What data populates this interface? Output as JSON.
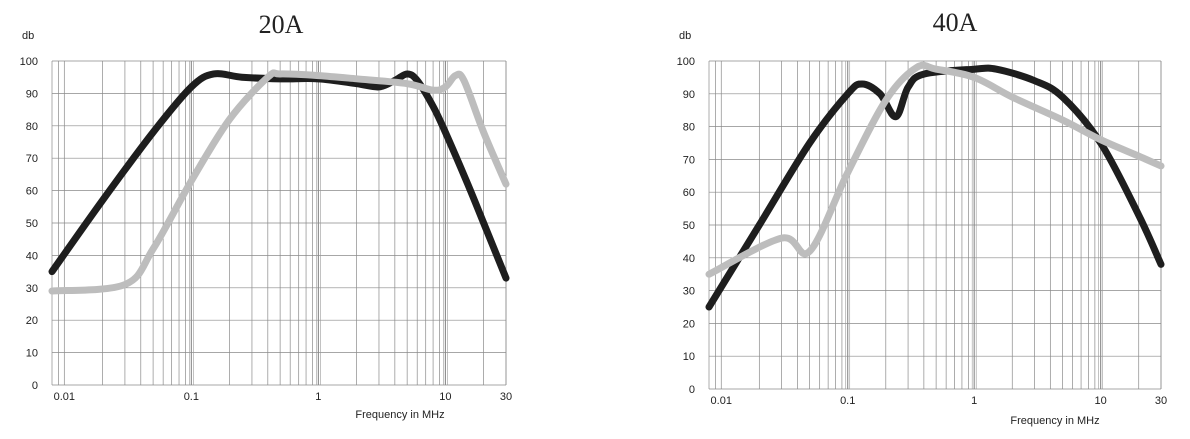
{
  "chart_data": [
    {
      "type": "line",
      "title": "20A",
      "ylabel": "db",
      "xlabel": "Frequency in MHz",
      "xscale": "log",
      "xlim": [
        0.008,
        30
      ],
      "ylim": [
        0,
        100
      ],
      "yticks": [
        0,
        10,
        20,
        30,
        40,
        50,
        60,
        70,
        80,
        90,
        100
      ],
      "xticks": [
        {
          "value": 0.01,
          "label": "0.01"
        },
        {
          "value": 0.1,
          "label": "0.1"
        },
        {
          "value": 1,
          "label": "1"
        },
        {
          "value": 10,
          "label": "10"
        },
        {
          "value": 30,
          "label": "30"
        }
      ],
      "grid": true,
      "series": [
        {
          "color": "#1e1e1e",
          "points": [
            [
              0.008,
              35
            ],
            [
              0.02,
              57
            ],
            [
              0.05,
              78
            ],
            [
              0.1,
              92
            ],
            [
              0.15,
              96
            ],
            [
              0.25,
              95
            ],
            [
              0.5,
              94.5
            ],
            [
              1,
              94.5
            ],
            [
              2,
              93
            ],
            [
              3,
              92
            ],
            [
              4,
              94
            ],
            [
              5,
              96
            ],
            [
              6,
              94
            ],
            [
              8,
              86
            ],
            [
              10,
              78
            ],
            [
              15,
              62
            ],
            [
              20,
              50
            ],
            [
              30,
              33
            ]
          ]
        },
        {
          "color": "#bdbdbd",
          "points": [
            [
              0.008,
              29
            ],
            [
              0.03,
              31
            ],
            [
              0.05,
              42
            ],
            [
              0.1,
              63
            ],
            [
              0.2,
              82
            ],
            [
              0.4,
              95
            ],
            [
              0.5,
              96
            ],
            [
              1,
              95.5
            ],
            [
              2,
              94.5
            ],
            [
              5,
              93
            ],
            [
              8,
              91
            ],
            [
              10,
              92
            ],
            [
              12,
              95.5
            ],
            [
              14,
              94
            ],
            [
              20,
              78
            ],
            [
              30,
              62
            ]
          ]
        }
      ]
    },
    {
      "type": "line",
      "title": "40A",
      "ylabel": "db",
      "xlabel": "Frequency in MHz",
      "xscale": "log",
      "xlim": [
        0.008,
        30
      ],
      "ylim": [
        0,
        100
      ],
      "yticks": [
        0,
        10,
        20,
        30,
        40,
        50,
        60,
        70,
        80,
        90,
        100
      ],
      "xticks": [
        {
          "value": 0.01,
          "label": "0.01"
        },
        {
          "value": 0.1,
          "label": "0.1"
        },
        {
          "value": 1,
          "label": "1"
        },
        {
          "value": 10,
          "label": "10"
        },
        {
          "value": 30,
          "label": "30"
        }
      ],
      "grid": true,
      "series": [
        {
          "color": "#1e1e1e",
          "points": [
            [
              0.008,
              25
            ],
            [
              0.02,
              50
            ],
            [
              0.05,
              75
            ],
            [
              0.1,
              90
            ],
            [
              0.13,
              93
            ],
            [
              0.18,
              90
            ],
            [
              0.24,
              83
            ],
            [
              0.3,
              92
            ],
            [
              0.4,
              96
            ],
            [
              1,
              97.5
            ],
            [
              1.5,
              97.5
            ],
            [
              3,
              94
            ],
            [
              5,
              89
            ],
            [
              10,
              75
            ],
            [
              20,
              53
            ],
            [
              30,
              38
            ]
          ]
        },
        {
          "color": "#bdbdbd",
          "points": [
            [
              0.008,
              35
            ],
            [
              0.03,
              46
            ],
            [
              0.05,
              42
            ],
            [
              0.1,
              66
            ],
            [
              0.2,
              88
            ],
            [
              0.35,
              98
            ],
            [
              0.5,
              97.5
            ],
            [
              1,
              95
            ],
            [
              2,
              89
            ],
            [
              5,
              82
            ],
            [
              10,
              76
            ],
            [
              20,
              71
            ],
            [
              30,
              68
            ]
          ]
        }
      ]
    }
  ]
}
